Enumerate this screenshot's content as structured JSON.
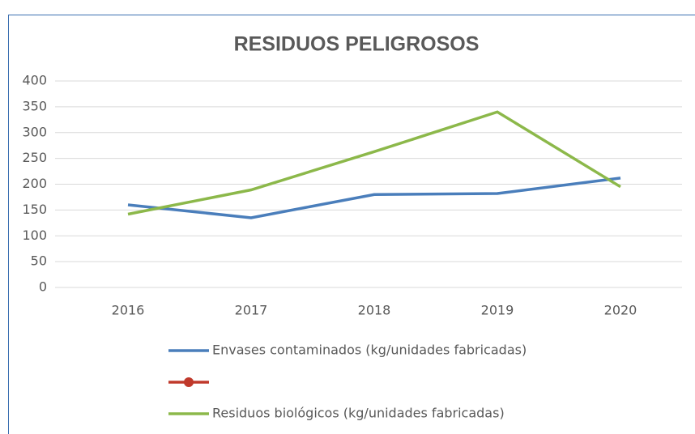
{
  "chart_data": {
    "type": "line",
    "title": "RESIDUOS PELIGROSOS",
    "categories": [
      "2016",
      "2017",
      "2018",
      "2019",
      "2020"
    ],
    "series": [
      {
        "name": "Envases contaminados (kg/unidades fabricadas)",
        "color": "#4a7ebb",
        "values": [
          160,
          135,
          180,
          182,
          212
        ]
      },
      {
        "color": "#c0392b",
        "marker": "circle",
        "values": [
          null,
          null,
          null,
          null,
          null
        ]
      },
      {
        "name": "Residuos biológicos (kg/unidades fabricadas)",
        "color": "#8cb84a",
        "values": [
          142,
          189,
          263,
          340,
          195
        ]
      }
    ],
    "ylim": [
      0,
      400
    ],
    "yticks": [
      0,
      50,
      100,
      150,
      200,
      250,
      300,
      350,
      400
    ],
    "grid": true
  }
}
